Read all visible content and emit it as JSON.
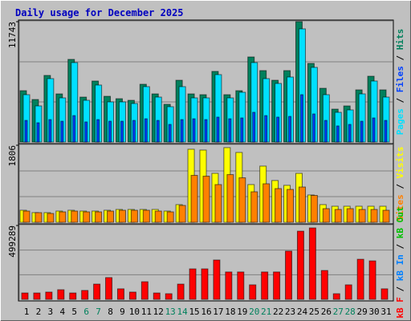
{
  "chart_data": {
    "type": "bar",
    "title": "Daily usage for December 2025",
    "categories": [
      "1",
      "2",
      "3",
      "4",
      "5",
      "6",
      "7",
      "8",
      "9",
      "10",
      "11",
      "12",
      "13",
      "14",
      "15",
      "16",
      "17",
      "18",
      "19",
      "20",
      "21",
      "22",
      "23",
      "24",
      "25",
      "26",
      "27",
      "28",
      "29",
      "30",
      "31"
    ],
    "category_colors": [
      "#000000",
      "#000000",
      "#000000",
      "#000000",
      "#000000",
      "#00805c",
      "#00805c",
      "#000000",
      "#000000",
      "#000000",
      "#000000",
      "#000000",
      "#00805c",
      "#00805c",
      "#000000",
      "#000000",
      "#000000",
      "#000000",
      "#000000",
      "#00805c",
      "#00805c",
      "#000000",
      "#000000",
      "#000000",
      "#000000",
      "#000000",
      "#00805c",
      "#00805c",
      "#000000",
      "#000000",
      "#000000"
    ],
    "legend_separator": " / ",
    "panels": [
      {
        "ylim": [
          0,
          11743
        ],
        "yticks": [
          11743
        ],
        "series": [
          {
            "name": "Hits",
            "color": "#00805c",
            "values": [
              5010,
              4149,
              6498,
              4697,
              8064,
              4384,
              5950,
              4462,
              4228,
              4071,
              5637,
              4697,
              3680,
              6028,
              4697,
              4619,
              6890,
              4619,
              5010,
              8299,
              6968,
              6028,
              6968,
              11743,
              7672,
              5245,
              3210,
              3523,
              5089,
              6420,
              5089
            ]
          },
          {
            "name": "Files",
            "color": "#0040ff",
            "values": [
              2110,
              1880,
              2190,
              2030,
              2580,
              1960,
              2190,
              2030,
              2030,
              2110,
              2270,
              2110,
              1720,
              2190,
              2270,
              2190,
              2430,
              2270,
              2350,
              2900,
              2580,
              2430,
              2500,
              4620,
              2740,
              2110,
              1570,
              1720,
              2030,
              2350,
              2110
            ]
          },
          {
            "name": "Pages",
            "color": "#00e0ff",
            "values": [
              4619,
              3523,
              6185,
              4306,
              7751,
              4071,
              5559,
              3915,
              3915,
              3758,
              5402,
              4384,
              3445,
              5402,
              4306,
              4306,
              6576,
              4306,
              4854,
              7751,
              6185,
              5715,
              6341,
              11039,
              7281,
              4619,
              2897,
              3132,
              4697,
              5950,
              4384
            ]
          }
        ]
      },
      {
        "ylim": [
          0,
          1806
        ],
        "yticks": [
          1806
        ],
        "series": [
          {
            "name": "Visits",
            "color": "#ffff00",
            "values": [
              282,
              226,
              226,
              263,
              282,
              263,
              263,
              282,
              301,
              301,
              301,
              301,
              263,
              414,
              1712,
              1693,
              1147,
              1750,
              1637,
              884,
              1317,
              979,
              866,
              1147,
              640,
              414,
              376,
              376,
              376,
              376,
              376
            ]
          },
          {
            "name": "Sites",
            "color": "#ff8000",
            "values": [
              263,
              226,
              207,
              244,
              263,
              244,
              244,
              263,
              282,
              282,
              282,
              263,
              244,
              395,
              1100,
              1081,
              884,
              1118,
              1043,
              715,
              903,
              790,
              771,
              827,
              630,
              320,
              301,
              320,
              301,
              301,
              282
            ]
          }
        ]
      },
      {
        "ylim": [
          0,
          499289
        ],
        "yticks": [
          499289
        ],
        "series": [
          {
            "name": "kB Out",
            "color": "#00c000"
          },
          {
            "name": "kB In",
            "color": "#0080ff"
          },
          {
            "name": "kB F",
            "color": "#ff0000",
            "values": [
              43000,
              43000,
              49000,
              65000,
              43000,
              60000,
              103000,
              147000,
              71000,
              49000,
              119000,
              43000,
              38000,
              103000,
              206000,
              206000,
              266000,
              185000,
              185000,
              98000,
              185000,
              185000,
              326000,
              461000,
              483000,
              195000,
              38000,
              98000,
              271000,
              260000,
              71000
            ]
          }
        ]
      }
    ]
  }
}
